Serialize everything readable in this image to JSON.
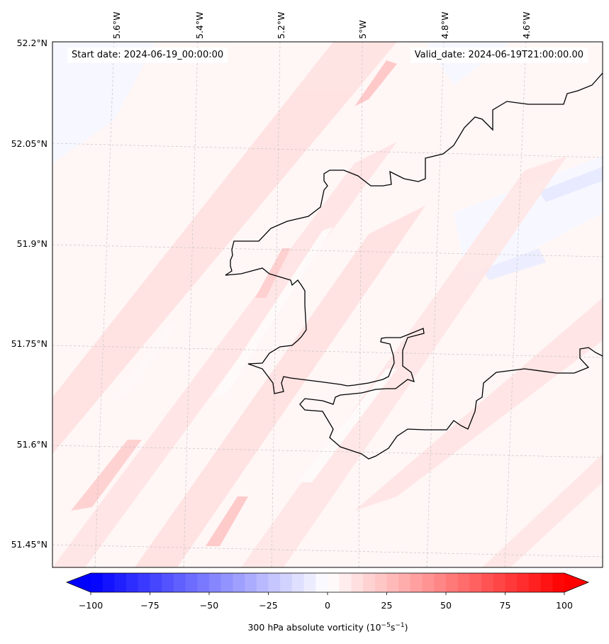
{
  "header": {
    "start_date": "Start date: 2024-06-19_00:00:00",
    "valid_date": "Valid_date: 2024-06-19T21:00:00.00"
  },
  "axes": {
    "lon_labels": [
      "5.6°W",
      "5.4°W",
      "5.2°W",
      "5°W",
      "4.8°W",
      "4.6°W"
    ],
    "lon_values": [
      -5.6,
      -5.4,
      -5.2,
      -5.0,
      -4.8,
      -4.6
    ],
    "lat_labels": [
      "52.2°N",
      "52.05°N",
      "51.9°N",
      "51.75°N",
      "51.6°N",
      "51.45°N"
    ],
    "lat_values": [
      52.2,
      52.05,
      51.9,
      51.75,
      51.6,
      51.45
    ]
  },
  "colorbar": {
    "label_main": "300 hPa absolute vorticity (10",
    "label_exp1": "−5",
    "label_mid": "s",
    "label_exp2": "−1",
    "label_end": ")",
    "min": -100,
    "max": 100,
    "ticks": [
      "−100",
      "−75",
      "−50",
      "−25",
      "0",
      "25",
      "50",
      "75",
      "100"
    ],
    "tick_values": [
      -100,
      -75,
      -50,
      -25,
      0,
      25,
      50,
      75,
      100
    ],
    "neg_color": "#0000ff",
    "zero_color": "#ffffff",
    "pos_color": "#ff0000",
    "extend": "both"
  },
  "map": {
    "field": "300 hPa absolute vorticity",
    "colormap": "bwr",
    "gridlines": true,
    "coastline_color": "#000000"
  }
}
